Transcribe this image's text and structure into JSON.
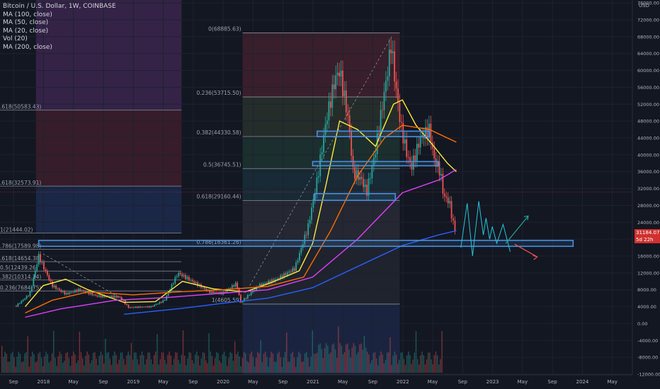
{
  "header": {
    "title": "Bitcoin / U.S. Dollar, 1W, COINBASE",
    "indicators": [
      "MA (100, close)",
      "MA (50, close)",
      "MA (20, close)",
      "Vol (20)",
      "MA (200, close)"
    ],
    "currency": "USD"
  },
  "price_label": {
    "price": "31184.07",
    "countdown": "5d 22h"
  },
  "colors": {
    "background": "#131722",
    "up": "#26a69a",
    "down": "#ef5350",
    "ma100": "#ff6d00",
    "ma50": "#ffeb3b",
    "ma20": "#e040fb",
    "ma200": "#2962ff",
    "zone_box": "#4a90e2"
  },
  "chart_data": {
    "type": "candlestick",
    "title": "Bitcoin / U.S. Dollar, 1W, COINBASE",
    "y_axis": {
      "range": [
        -12000,
        76000
      ],
      "ticks": [
        "76000.00",
        "72000.00",
        "68000.00",
        "64000.00",
        "60000.00",
        "56000.00",
        "52000.00",
        "48000.00",
        "44000.00",
        "40000.00",
        "36000.00",
        "32000.00",
        "28000.00",
        "24000.00",
        "20000.00",
        "16000.00",
        "12000.00",
        "8000.00",
        "4000.00",
        "0.00",
        "-4000.00",
        "-8000.00",
        "-12000.00"
      ]
    },
    "x_axis": {
      "ticks": [
        "Sep",
        "2018",
        "May",
        "Sep",
        "2019",
        "May",
        "Sep",
        "2020",
        "May",
        "Sep",
        "2021",
        "May",
        "Sep",
        "2022",
        "May",
        "Sep",
        "2023",
        "May",
        "Sep",
        "2024",
        "May"
      ]
    },
    "fib_left": [
      {
        "label": ".618(50583.43)",
        "value": 50583.43
      },
      {
        "label": ".618(32573.91)",
        "value": 32573.91
      },
      {
        "label": "1(21444.02)",
        "value": 21444.02
      },
      {
        "label": ".786(17589.98)",
        "value": 17589.98
      },
      {
        "label": ".618(14654.38)",
        "value": 14654.38
      },
      {
        "label": "0.5(12439.26)",
        "value": 12439.26
      },
      {
        "label": ".382(10314.14)",
        "value": 10314.14
      },
      {
        "label": "0.236(7684.75)",
        "value": 7684.75
      }
    ],
    "fib_right": [
      {
        "label": "0(68885.63)",
        "value": 68885.63
      },
      {
        "label": "0.236(53715.50)",
        "value": 53715.5
      },
      {
        "label": "0.382(44330.58)",
        "value": 44330.58
      },
      {
        "label": "0.5(36745.51)",
        "value": 36745.51
      },
      {
        "label": "0.618(29160.44)",
        "value": 29160.44
      },
      {
        "label": "0.786(18361.26)",
        "value": 18361.26
      },
      {
        "label": "1(4605.59)",
        "value": 4605.59
      }
    ],
    "price_path": [
      [
        2017.7,
        4200
      ],
      [
        2017.85,
        7000
      ],
      [
        2017.95,
        16000
      ],
      [
        2018.0,
        13500
      ],
      [
        2018.1,
        9000
      ],
      [
        2018.25,
        7000
      ],
      [
        2018.4,
        8000
      ],
      [
        2018.6,
        6500
      ],
      [
        2018.85,
        6300
      ],
      [
        2018.95,
        3800
      ],
      [
        2019.2,
        4000
      ],
      [
        2019.35,
        5500
      ],
      [
        2019.5,
        12000
      ],
      [
        2019.7,
        9500
      ],
      [
        2019.85,
        7500
      ],
      [
        2020.0,
        7200
      ],
      [
        2020.15,
        9500
      ],
      [
        2020.2,
        5000
      ],
      [
        2020.4,
        9000
      ],
      [
        2020.6,
        10500
      ],
      [
        2020.8,
        13000
      ],
      [
        2020.95,
        23000
      ],
      [
        2021.05,
        34000
      ],
      [
        2021.15,
        48000
      ],
      [
        2021.25,
        58000
      ],
      [
        2021.3,
        60000
      ],
      [
        2021.4,
        48000
      ],
      [
        2021.45,
        36000
      ],
      [
        2021.55,
        34000
      ],
      [
        2021.6,
        31000
      ],
      [
        2021.7,
        41000
      ],
      [
        2021.75,
        48000
      ],
      [
        2021.85,
        62000
      ],
      [
        2021.87,
        67000
      ],
      [
        2021.92,
        57000
      ],
      [
        2021.98,
        47000
      ],
      [
        2022.05,
        40000
      ],
      [
        2022.1,
        37000
      ],
      [
        2022.2,
        44000
      ],
      [
        2022.3,
        46000
      ],
      [
        2022.35,
        39000
      ],
      [
        2022.42,
        36000
      ],
      [
        2022.46,
        30000
      ],
      [
        2022.5,
        29500
      ],
      [
        2022.53,
        28000
      ],
      [
        2022.56,
        24000
      ],
      [
        2022.6,
        21500
      ]
    ],
    "ma_series": [
      {
        "name": "MA (20, close)",
        "color": "#ffeb3b",
        "points": [
          [
            2017.8,
            4000
          ],
          [
            2018.0,
            9000
          ],
          [
            2018.25,
            10500
          ],
          [
            2018.5,
            8000
          ],
          [
            2018.9,
            5000
          ],
          [
            2019.25,
            5200
          ],
          [
            2019.55,
            10000
          ],
          [
            2019.9,
            8200
          ],
          [
            2020.25,
            7500
          ],
          [
            2020.55,
            9800
          ],
          [
            2020.85,
            12500
          ],
          [
            2021.0,
            19000
          ],
          [
            2021.15,
            33000
          ],
          [
            2021.3,
            48000
          ],
          [
            2021.5,
            46000
          ],
          [
            2021.7,
            42000
          ],
          [
            2021.9,
            52000
          ],
          [
            2022.0,
            53000
          ],
          [
            2022.15,
            47000
          ],
          [
            2022.35,
            42000
          ],
          [
            2022.5,
            38000
          ],
          [
            2022.6,
            36000
          ]
        ]
      },
      {
        "name": "MA (50, close)",
        "color": "#ff6d00",
        "points": [
          [
            2017.8,
            2500
          ],
          [
            2018.1,
            5500
          ],
          [
            2018.5,
            7500
          ],
          [
            2019.0,
            6800
          ],
          [
            2019.5,
            7500
          ],
          [
            2020.0,
            8000
          ],
          [
            2020.5,
            8800
          ],
          [
            2020.9,
            11000
          ],
          [
            2021.2,
            22000
          ],
          [
            2021.5,
            35000
          ],
          [
            2021.8,
            44000
          ],
          [
            2022.0,
            47000
          ],
          [
            2022.3,
            46000
          ],
          [
            2022.6,
            43000
          ]
        ]
      },
      {
        "name": "MA (100, close)",
        "color": "#e040fb",
        "points": [
          [
            2017.8,
            1500
          ],
          [
            2018.2,
            3500
          ],
          [
            2018.8,
            5500
          ],
          [
            2019.4,
            6200
          ],
          [
            2020.0,
            7200
          ],
          [
            2020.5,
            8000
          ],
          [
            2021.0,
            11000
          ],
          [
            2021.5,
            20000
          ],
          [
            2022.0,
            31000
          ],
          [
            2022.4,
            34000
          ],
          [
            2022.6,
            36500
          ]
        ]
      },
      {
        "name": "MA (200, close)",
        "color": "#2962ff",
        "points": [
          [
            2018.9,
            2200
          ],
          [
            2019.5,
            3500
          ],
          [
            2020.0,
            4800
          ],
          [
            2020.5,
            6000
          ],
          [
            2021.0,
            8500
          ],
          [
            2021.5,
            13500
          ],
          [
            2022.0,
            18500
          ],
          [
            2022.4,
            21000
          ],
          [
            2022.6,
            22000
          ]
        ]
      }
    ],
    "zones": [
      {
        "from": 2017.95,
        "to": 2023.9,
        "low": 18300,
        "high": 19700
      },
      {
        "from": 2021.02,
        "to": 2021.92,
        "low": 29200,
        "high": 30800
      },
      {
        "from": 2021.0,
        "to": 2022.4,
        "low": 37400,
        "high": 38400
      },
      {
        "from": 2021.05,
        "to": 2022.3,
        "low": 44300,
        "high": 45600
      }
    ]
  }
}
